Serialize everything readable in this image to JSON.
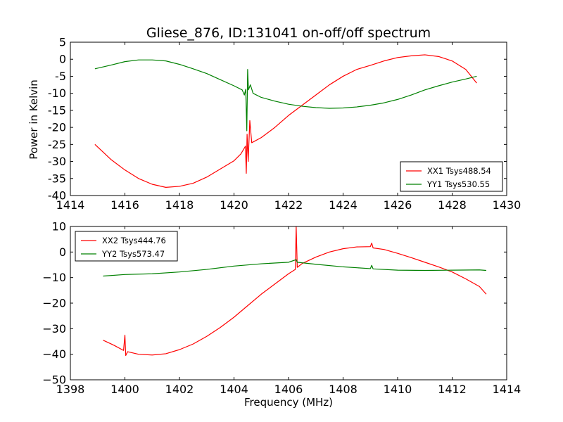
{
  "figure": {
    "title": "Gliese_876, ID:131041 on-off/off spectrum",
    "ylabel": "Power in Kelvin",
    "xlabel": "Frequency (MHz)"
  },
  "chart_data": [
    {
      "type": "line",
      "xlim": [
        1414,
        1430
      ],
      "ylim": [
        -40,
        5
      ],
      "x_ticks": [
        1414,
        1416,
        1418,
        1420,
        1422,
        1424,
        1426,
        1428,
        1430
      ],
      "y_ticks": [
        5,
        0,
        -5,
        -10,
        -15,
        -20,
        -25,
        -30,
        -35,
        -40
      ],
      "grid": false,
      "legend_position": "lower-right",
      "series": [
        {
          "name": "XX1 Tsys488.54",
          "color": "#ff0000",
          "points": [
            [
              1414.9,
              -25
            ],
            [
              1415.5,
              -29.5
            ],
            [
              1416,
              -32.5
            ],
            [
              1416.5,
              -35
            ],
            [
              1417,
              -36.7
            ],
            [
              1417.5,
              -37.6
            ],
            [
              1418,
              -37.3
            ],
            [
              1418.5,
              -36.4
            ],
            [
              1419,
              -34.6
            ],
            [
              1419.5,
              -32.2
            ],
            [
              1420,
              -29.8
            ],
            [
              1420.25,
              -27.8
            ],
            [
              1420.35,
              -26.5
            ],
            [
              1420.42,
              -25.5
            ],
            [
              1420.45,
              -33.5
            ],
            [
              1420.48,
              -22
            ],
            [
              1420.52,
              -30
            ],
            [
              1420.58,
              -18
            ],
            [
              1420.65,
              -24.5
            ],
            [
              1421,
              -23
            ],
            [
              1421.5,
              -20
            ],
            [
              1422,
              -16.5
            ],
            [
              1422.5,
              -13.5
            ],
            [
              1423,
              -10.5
            ],
            [
              1423.5,
              -7.5
            ],
            [
              1424,
              -5
            ],
            [
              1424.5,
              -3
            ],
            [
              1425,
              -1.8
            ],
            [
              1425.5,
              -0.5
            ],
            [
              1426,
              0.5
            ],
            [
              1426.5,
              1
            ],
            [
              1427,
              1.3
            ],
            [
              1427.5,
              0.8
            ],
            [
              1428,
              -0.5
            ],
            [
              1428.5,
              -3
            ],
            [
              1428.9,
              -7
            ]
          ]
        },
        {
          "name": "YY1 Tsys530.55",
          "color": "#008000",
          "points": [
            [
              1414.9,
              -2.8
            ],
            [
              1415.5,
              -1.7
            ],
            [
              1416,
              -0.7
            ],
            [
              1416.5,
              -0.2
            ],
            [
              1417,
              -0.2
            ],
            [
              1417.5,
              -0.5
            ],
            [
              1418,
              -1.5
            ],
            [
              1418.5,
              -2.8
            ],
            [
              1419,
              -4.2
            ],
            [
              1419.5,
              -6
            ],
            [
              1420,
              -7.8
            ],
            [
              1420.3,
              -9
            ],
            [
              1420.38,
              -10.5
            ],
            [
              1420.43,
              -8.8
            ],
            [
              1420.47,
              -21
            ],
            [
              1420.5,
              -3
            ],
            [
              1420.53,
              -9
            ],
            [
              1420.6,
              -7.5
            ],
            [
              1420.7,
              -10
            ],
            [
              1421,
              -11.2
            ],
            [
              1421.5,
              -12.3
            ],
            [
              1422,
              -13.2
            ],
            [
              1422.5,
              -13.8
            ],
            [
              1423,
              -14.2
            ],
            [
              1423.5,
              -14.4
            ],
            [
              1424,
              -14.3
            ],
            [
              1424.5,
              -14
            ],
            [
              1425,
              -13.5
            ],
            [
              1425.5,
              -12.8
            ],
            [
              1426,
              -11.8
            ],
            [
              1426.5,
              -10.5
            ],
            [
              1427,
              -9
            ],
            [
              1427.5,
              -7.8
            ],
            [
              1428,
              -6.7
            ],
            [
              1428.5,
              -5.8
            ],
            [
              1428.9,
              -5
            ]
          ]
        }
      ]
    },
    {
      "type": "line",
      "xlim": [
        1398,
        1414
      ],
      "ylim": [
        -50,
        10
      ],
      "x_ticks": [
        1398,
        1400,
        1402,
        1404,
        1406,
        1408,
        1410,
        1412,
        1414
      ],
      "y_ticks": [
        10,
        0,
        -10,
        -20,
        -30,
        -40,
        -50
      ],
      "tick_labels": {
        "x": [
          "1398",
          "1400",
          "1402",
          "1404",
          "1406",
          "1408",
          "1410",
          "1412",
          "1414"
        ],
        "y": [
          "10",
          "0",
          "−10",
          "−20",
          "−30",
          "−40",
          "−50"
        ]
      },
      "grid": false,
      "legend_position": "upper-left",
      "series": [
        {
          "name": "XX2 Tsys444.76",
          "color": "#ff0000",
          "points": [
            [
              1399.2,
              -34.5
            ],
            [
              1399.6,
              -36.5
            ],
            [
              1399.95,
              -38.5
            ],
            [
              1400.0,
              -32.5
            ],
            [
              1400.03,
              -40.5
            ],
            [
              1400.1,
              -39
            ],
            [
              1400.5,
              -40
            ],
            [
              1401,
              -40.3
            ],
            [
              1401.5,
              -39.8
            ],
            [
              1402,
              -38.2
            ],
            [
              1402.5,
              -36
            ],
            [
              1403,
              -33
            ],
            [
              1403.5,
              -29.5
            ],
            [
              1404,
              -25.5
            ],
            [
              1404.5,
              -21
            ],
            [
              1405,
              -16.5
            ],
            [
              1405.5,
              -12.5
            ],
            [
              1406,
              -8.5
            ],
            [
              1406.25,
              -6.8
            ],
            [
              1406.28,
              10
            ],
            [
              1406.32,
              -6
            ],
            [
              1406.5,
              -4.5
            ],
            [
              1407,
              -2
            ],
            [
              1407.5,
              0
            ],
            [
              1408,
              1.3
            ],
            [
              1408.5,
              2
            ],
            [
              1409,
              2.1
            ],
            [
              1409.05,
              3.5
            ],
            [
              1409.1,
              1.6
            ],
            [
              1409.5,
              1
            ],
            [
              1410,
              -0.5
            ],
            [
              1410.5,
              -2.2
            ],
            [
              1411,
              -4
            ],
            [
              1411.5,
              -5.8
            ],
            [
              1412,
              -7.8
            ],
            [
              1412.5,
              -10.5
            ],
            [
              1413,
              -13.5
            ],
            [
              1413.25,
              -16.5
            ]
          ]
        },
        {
          "name": "YY2 Tsys573.47",
          "color": "#008000",
          "points": [
            [
              1399.2,
              -9.4
            ],
            [
              1400,
              -8.8
            ],
            [
              1401,
              -8.5
            ],
            [
              1402,
              -7.8
            ],
            [
              1403,
              -6.8
            ],
            [
              1404,
              -5.5
            ],
            [
              1405,
              -4.6
            ],
            [
              1406,
              -4
            ],
            [
              1406.28,
              -3
            ],
            [
              1406.32,
              -4
            ],
            [
              1407,
              -4.8
            ],
            [
              1408,
              -5.8
            ],
            [
              1409,
              -6.5
            ],
            [
              1409.05,
              -5.2
            ],
            [
              1409.1,
              -6.6
            ],
            [
              1410,
              -7.1
            ],
            [
              1411,
              -7.2
            ],
            [
              1412,
              -7.1
            ],
            [
              1413,
              -7
            ],
            [
              1413.25,
              -7.2
            ]
          ]
        }
      ]
    }
  ]
}
